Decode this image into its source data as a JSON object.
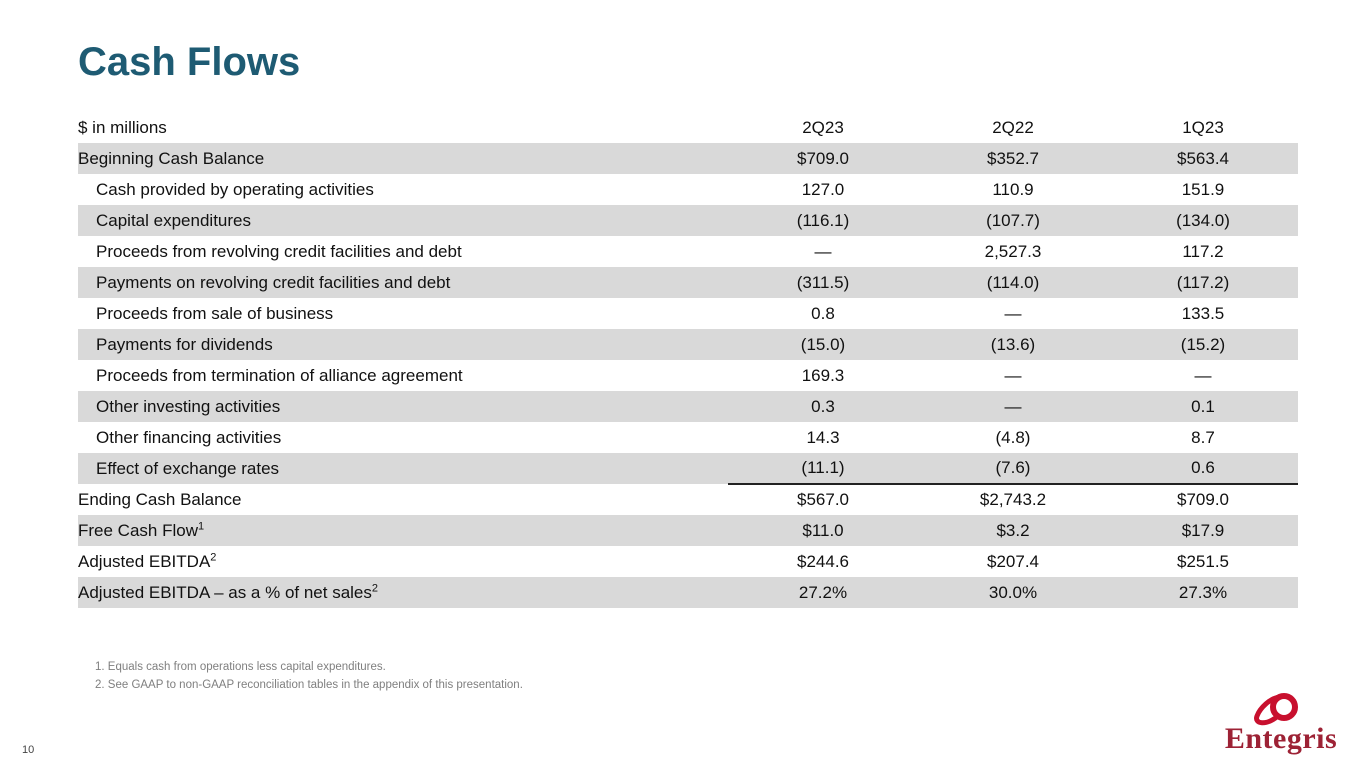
{
  "slide": {
    "title": "Cash Flows",
    "page_number": "10"
  },
  "table": {
    "header_label": "$ in millions",
    "columns": [
      "2Q23",
      "2Q22",
      "1Q23"
    ],
    "rows": [
      {
        "label": "Beginning Cash Balance",
        "indent": false,
        "shaded": true,
        "values": [
          "$709.0",
          "$352.7",
          "$563.4"
        ]
      },
      {
        "label": "Cash provided by operating activities",
        "indent": true,
        "shaded": false,
        "values": [
          "127.0",
          "110.9",
          "151.9"
        ]
      },
      {
        "label": "Capital expenditures",
        "indent": true,
        "shaded": true,
        "values": [
          "(116.1)",
          "(107.7)",
          "(134.0)"
        ]
      },
      {
        "label": "Proceeds from revolving credit facilities and debt",
        "indent": true,
        "shaded": false,
        "values": [
          "—",
          "2,527.3",
          "117.2"
        ]
      },
      {
        "label": "Payments on revolving credit facilities and debt",
        "indent": true,
        "shaded": true,
        "values": [
          "(311.5)",
          "(114.0)",
          "(117.2)"
        ]
      },
      {
        "label": "Proceeds from sale of business",
        "indent": true,
        "shaded": false,
        "values": [
          "0.8",
          "—",
          "133.5"
        ]
      },
      {
        "label": "Payments for dividends",
        "indent": true,
        "shaded": true,
        "values": [
          "(15.0)",
          "(13.6)",
          "(15.2)"
        ]
      },
      {
        "label": "Proceeds from termination of alliance agreement",
        "indent": true,
        "shaded": false,
        "values": [
          "169.3",
          "—",
          "—"
        ]
      },
      {
        "label": "Other investing activities",
        "indent": true,
        "shaded": true,
        "values": [
          "0.3",
          "—",
          "0.1"
        ]
      },
      {
        "label": "Other financing activities",
        "indent": true,
        "shaded": false,
        "values": [
          "14.3",
          "(4.8)",
          "8.7"
        ]
      },
      {
        "label": "Effect of exchange rates",
        "indent": true,
        "shaded": true,
        "values": [
          "(11.1)",
          "(7.6)",
          "0.6"
        ]
      },
      {
        "label": "Ending Cash Balance",
        "indent": false,
        "shaded": false,
        "rule_above": true,
        "values": [
          "$567.0",
          "$2,743.2",
          "$709.0"
        ]
      },
      {
        "label": "Free Cash Flow",
        "sup": "1",
        "indent": false,
        "shaded": true,
        "values": [
          "$11.0",
          "$3.2",
          "$17.9"
        ]
      },
      {
        "label": "Adjusted EBITDA",
        "sup": "2",
        "indent": false,
        "shaded": false,
        "values": [
          "$244.6",
          "$207.4",
          "$251.5"
        ]
      },
      {
        "label": "Adjusted EBITDA – as a % of net sales",
        "sup": "2",
        "indent": false,
        "shaded": true,
        "values": [
          "27.2%",
          "30.0%",
          "27.3%"
        ]
      }
    ]
  },
  "footnotes": [
    "1. Equals cash from operations less capital expenditures.",
    "2. See GAAP to non-GAAP reconciliation tables in the appendix of this presentation."
  ],
  "logo": {
    "text": "Entegris"
  },
  "colors": {
    "title": "#1e5b73",
    "row_shade": "#d9d9d9",
    "logo_red": "#c8102e",
    "wordmark_red": "#9d2235",
    "footnote_gray": "#7f7f7f"
  },
  "chart_data": {
    "type": "table",
    "title": "Cash Flows",
    "unit": "$ in millions",
    "categories": [
      "2Q23",
      "2Q22",
      "1Q23"
    ],
    "series": [
      {
        "name": "Beginning Cash Balance",
        "values": [
          709.0,
          352.7,
          563.4
        ]
      },
      {
        "name": "Cash provided by operating activities",
        "values": [
          127.0,
          110.9,
          151.9
        ]
      },
      {
        "name": "Capital expenditures",
        "values": [
          -116.1,
          -107.7,
          -134.0
        ]
      },
      {
        "name": "Proceeds from revolving credit facilities and debt",
        "values": [
          null,
          2527.3,
          117.2
        ]
      },
      {
        "name": "Payments on revolving credit facilities and debt",
        "values": [
          -311.5,
          -114.0,
          -117.2
        ]
      },
      {
        "name": "Proceeds from sale of business",
        "values": [
          0.8,
          null,
          133.5
        ]
      },
      {
        "name": "Payments for dividends",
        "values": [
          -15.0,
          -13.6,
          -15.2
        ]
      },
      {
        "name": "Proceeds from termination of alliance agreement",
        "values": [
          169.3,
          null,
          null
        ]
      },
      {
        "name": "Other investing activities",
        "values": [
          0.3,
          null,
          0.1
        ]
      },
      {
        "name": "Other financing activities",
        "values": [
          14.3,
          -4.8,
          8.7
        ]
      },
      {
        "name": "Effect of exchange rates",
        "values": [
          -11.1,
          -7.6,
          0.6
        ]
      },
      {
        "name": "Ending Cash Balance",
        "values": [
          567.0,
          2743.2,
          709.0
        ]
      },
      {
        "name": "Free Cash Flow",
        "values": [
          11.0,
          3.2,
          17.9
        ]
      },
      {
        "name": "Adjusted EBITDA",
        "values": [
          244.6,
          207.4,
          251.5
        ]
      },
      {
        "name": "Adjusted EBITDA – as a % of net sales",
        "values": [
          "27.2%",
          "30.0%",
          "27.3%"
        ]
      }
    ]
  }
}
